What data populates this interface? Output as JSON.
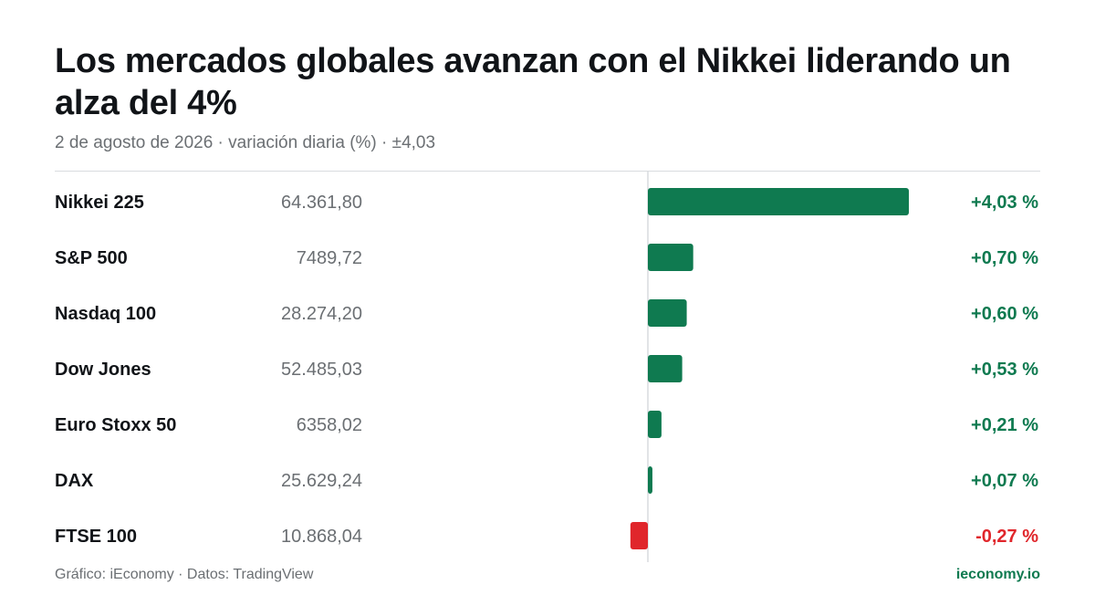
{
  "header": {
    "title": "Los mercados globales avanzan con el Nikkei liderando un alza del 4%",
    "subtitle": "2 de agosto de 2026 · variación diaria (%) · ±4,03"
  },
  "footer": {
    "source": "Gráfico: iEconomy · Datos: TradingView",
    "brand": "ieconomy.io"
  },
  "colors": {
    "positive": "#0f7a50",
    "negative": "#e0262b",
    "axis": "#d9dcdf"
  },
  "chart_data": {
    "type": "bar",
    "orientation": "horizontal",
    "title": "Los mercados globales avanzan con el Nikkei liderando un alza del 4%",
    "xlim": [
      -4.03,
      4.03
    ],
    "categories": [
      "Nikkei 225",
      "S&P 500",
      "Nasdaq 100",
      "Dow Jones",
      "Euro Stoxx 50",
      "DAX",
      "FTSE 100"
    ],
    "index_values": [
      "64.361,80",
      "7489,72",
      "28.274,20",
      "52.485,03",
      "6358,02",
      "25.629,24",
      "10.868,04"
    ],
    "values": [
      4.03,
      0.7,
      0.6,
      0.53,
      0.21,
      0.07,
      -0.27
    ],
    "value_labels": [
      "+4,03 %",
      "+0,70 %",
      "+0,60 %",
      "+0,53 %",
      "+0,21 %",
      "+0,07 %",
      "-0,27 %"
    ]
  }
}
